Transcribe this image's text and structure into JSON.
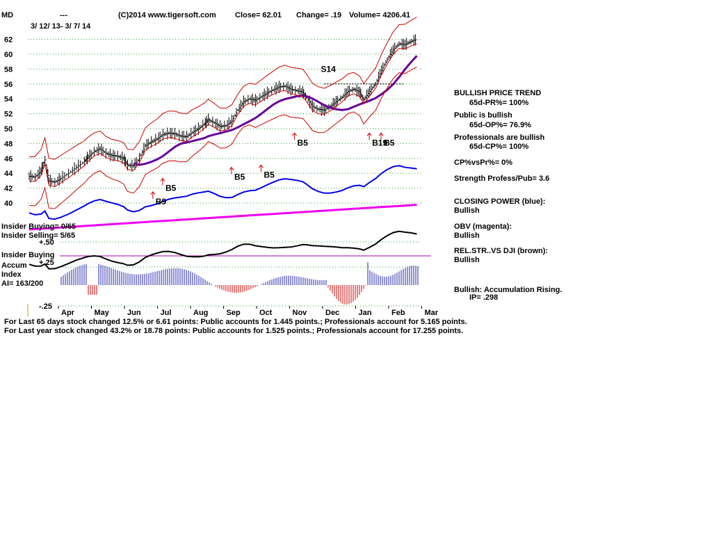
{
  "header": {
    "symbol": "MD",
    "dashes": "---",
    "copyright": "(C)2014 www.tigersoft.com",
    "close": "Close=  62.01",
    "change": "Change= .19",
    "volume": "Volume= 4206.41",
    "date_range": "3/ 12/ 13- 3/ 7/ 14"
  },
  "left_labels": {
    "insider_buying_count": "Insider Buying= 0/65",
    "insider_selling_count": "Insider Selling= 5/65",
    "plus50": "+.50",
    "insider_buying": "Insider Buying",
    "accum": "Accum",
    "plus25": "+.25",
    "index": "Index",
    "ai": "AI= 163/200",
    "minus25": "-.25"
  },
  "right_panel": {
    "trend_title": "BULLISH PRICE TREND",
    "pr": "65d-PR%= 100%",
    "public": "Public is bullish",
    "op": "65d-OP%= 76.9%",
    "professionals": "Professionals are bullish",
    "cp": "65d-CP%= 100%",
    "cp_vs_pr": "CP%vsPr%=  0%",
    "strength": "Strength Profess/Pub= 3.6",
    "closing_power_title": "CLOSING POWER (blue):",
    "closing_power_value": "Bullish",
    "obv_title": "OBV (magenta):",
    "obv_value": "Bullish",
    "relstr_title": "REL.STR..VS DJI (brown):",
    "relstr_value": "Bullish",
    "accum_title": "Bullish: Accumulation Rising.",
    "ip": "IP=  .298"
  },
  "footer": {
    "line1": "For Last 65 days stock changed  12.5% or  6.61 points:  Public accounts for  1.445 points.;  Professionals account for  5.165 points.",
    "line2": "For Last year stock changed  43.2% or  18.78 points:  Public accounts for  1.525 points.;  Professionals account for  17.255 points."
  },
  "colors": {
    "price": "#000000",
    "bands": "#cc0000",
    "ma": "#660099",
    "closing_power": "#0000ee",
    "obv": "#ee00ee",
    "relstr": "#000000",
    "accum_pos": "#2222aa",
    "accum_neg": "#cc0000",
    "grid": "#339933"
  },
  "chart_data": {
    "type": "line",
    "x_ticks": [
      "Apr",
      "May",
      "Jun",
      "Jul",
      "Aug",
      "Sep",
      "Oct",
      "Nov",
      "Dec",
      "Jan",
      "Feb",
      "Mar"
    ],
    "y_ticks": [
      40,
      42,
      44,
      46,
      48,
      50,
      52,
      54,
      56,
      58,
      60,
      62
    ],
    "ylim": [
      39,
      63
    ],
    "price_series": [
      [
        0,
        43.6
      ],
      [
        0.3,
        43.5
      ],
      [
        0.6,
        44.3
      ],
      [
        0.8,
        45.8
      ],
      [
        1.0,
        43.0
      ],
      [
        1.3,
        42.8
      ],
      [
        1.6,
        43.3
      ],
      [
        2.0,
        44.0
      ],
      [
        2.4,
        44.8
      ],
      [
        2.8,
        45.6
      ],
      [
        3.0,
        46.2
      ],
      [
        3.3,
        46.9
      ],
      [
        3.6,
        47.3
      ],
      [
        3.9,
        46.7
      ],
      [
        4.2,
        46.4
      ],
      [
        4.5,
        46.3
      ],
      [
        4.8,
        46.0
      ],
      [
        5.0,
        45.1
      ],
      [
        5.3,
        45.0
      ],
      [
        5.6,
        46.0
      ],
      [
        5.9,
        47.7
      ],
      [
        6.2,
        48.2
      ],
      [
        6.5,
        48.6
      ],
      [
        6.8,
        49.2
      ],
      [
        7.1,
        49.4
      ],
      [
        7.4,
        49.3
      ],
      [
        7.7,
        49.0
      ],
      [
        8.0,
        48.9
      ],
      [
        8.3,
        49.5
      ],
      [
        8.6,
        50.0
      ],
      [
        8.9,
        50.6
      ],
      [
        9.1,
        51.2
      ],
      [
        9.4,
        50.8
      ],
      [
        9.7,
        50.3
      ],
      [
        10.0,
        50.4
      ],
      [
        10.3,
        51.0
      ],
      [
        10.6,
        52.5
      ],
      [
        10.9,
        53.6
      ],
      [
        11.2,
        54.0
      ],
      [
        11.5,
        53.8
      ],
      [
        11.8,
        54.3
      ],
      [
        12.1,
        54.8
      ],
      [
        12.4,
        55.2
      ],
      [
        12.7,
        55.6
      ],
      [
        13.0,
        55.7
      ],
      [
        13.3,
        55.3
      ],
      [
        13.6,
        55.1
      ],
      [
        13.9,
        54.9
      ],
      [
        14.1,
        54.2
      ],
      [
        14.4,
        53.0
      ],
      [
        14.7,
        52.6
      ],
      [
        15.0,
        52.5
      ],
      [
        15.3,
        53.0
      ],
      [
        15.6,
        53.6
      ],
      [
        15.9,
        54.2
      ],
      [
        16.2,
        55.0
      ],
      [
        16.5,
        55.3
      ],
      [
        16.8,
        54.9
      ],
      [
        17.0,
        53.9
      ],
      [
        17.3,
        55.0
      ],
      [
        17.6,
        56.0
      ],
      [
        17.9,
        57.8
      ],
      [
        18.2,
        59.3
      ],
      [
        18.5,
        60.6
      ],
      [
        18.8,
        61.4
      ],
      [
        19.1,
        61.3
      ],
      [
        19.4,
        61.7
      ],
      [
        19.7,
        62.01
      ]
    ],
    "signals": [
      {
        "label": "B5",
        "x": 6.5,
        "y": 42.0
      },
      {
        "label": "B9",
        "x": 6.0,
        "y": 40.2
      },
      {
        "label": "B5",
        "x": 10.0,
        "y": 43.5
      },
      {
        "label": "B5",
        "x": 11.5,
        "y": 43.8
      },
      {
        "label": "B5",
        "x": 13.2,
        "y": 48.1
      },
      {
        "label": "B19",
        "x": 17.0,
        "y": 48.1
      },
      {
        "label": "B5",
        "x": 17.6,
        "y": 48.1
      }
    ],
    "sell_signal": {
      "label": "S14",
      "x": 14.4,
      "y": 58.0
    }
  }
}
